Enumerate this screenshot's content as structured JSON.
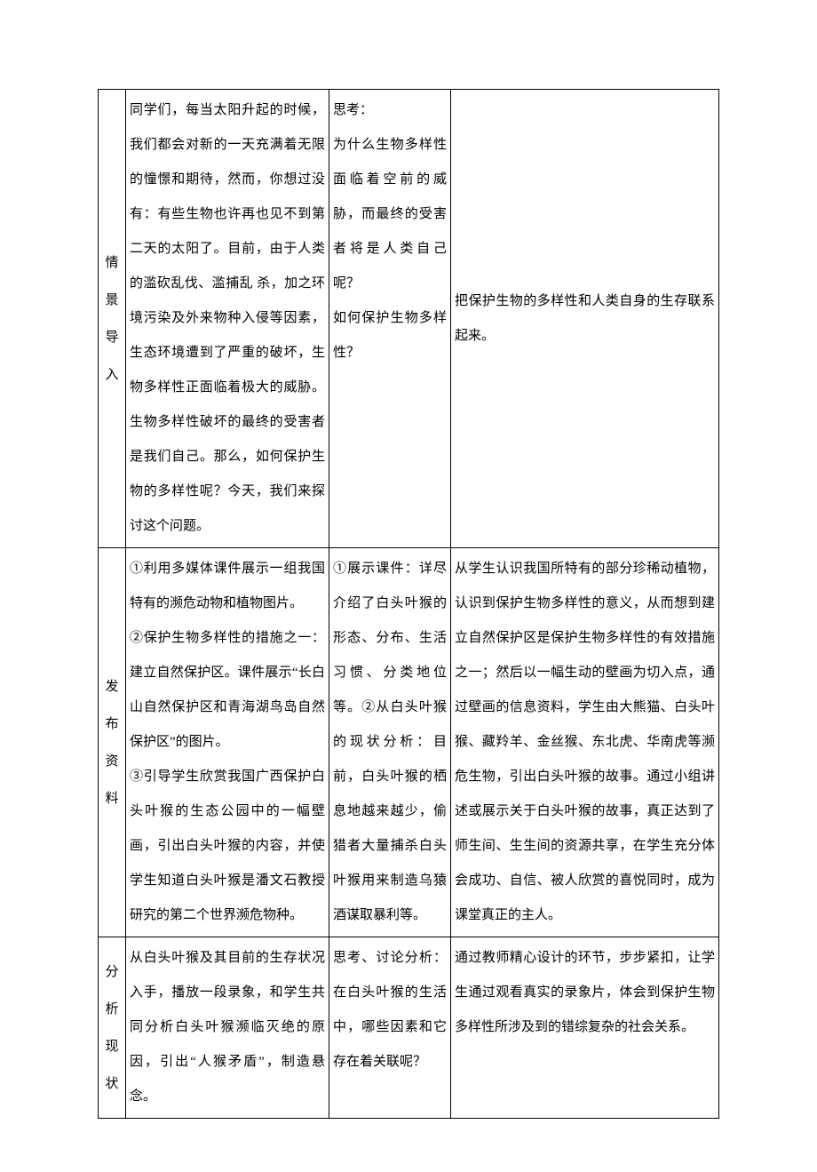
{
  "rows": [
    {
      "label": "情景导入",
      "teacher": "同学们，每当太阳升起的时候，我们都会对新的一天充满着无限的憧憬和期待，然而，你想过没有：有些生物也许再也见不到第二天的太阳了。目前，由于人类的滥砍乱伐、滥捕乱 杀，加之环境污染及外来物种入侵等因素，生态环境遭到了严重的破坏，生物多样性正面临着极大的威胁。生物多样性破坏的最终的受害者是我们自己。那么，如何保护生物的多样性呢？今天，我们来探讨这个问题。",
      "student": "思考：\n为什么生物多样性面临着空前的威胁，而最终的受害者将是人类自己呢？\n如何保护生物多样性？",
      "intent": "把保护生物的多样性和人类自身的生存联系起来。",
      "intent_valign": "middle"
    },
    {
      "label": "发布资料",
      "teacher": "①利用多媒体课件展示一组我国特有的濒危动物和植物图片。\n②保护生物多样性的措施之一：建立自然保护区。课件展示“长白山自然保护区和青海湖鸟岛自然保护区”的图片。\n③引导学生欣赏我国广西保护白头叶猴的生态公园中的一幅壁画，引出白头叶猴的内容，并使学生知道白头叶猴是潘文石教授研究的第二个世界濒危物种。",
      "student": "①展示课件：详尽介绍了白头叶猴的形态、分布、生活习惯、分类地位等。②从白头叶猴的现状分析：目前，白头叶猴的栖息地越来越少，偷猎者大量捕杀白头叶猴用来制造乌猿酒谋取暴利等。",
      "intent": "从学生认识我国所特有的部分珍稀动植物，认识到保护生物多样性的意义，从而想到建立自然保护区是保护生物多样性的有效措施之一；然后以一幅生动的壁画为切入点，通过壁画的信息资料，学生由大熊猫、白头叶猴、藏羚羊、金丝猴、东北虎、华南虎等濒危生物，引出白头叶猴的故事。通过小组讲述或展示关于白头叶猴的故事，真正达到了师生间、生生间的资源共享，在学生充分体会成功、自信、被人欣赏的喜悦同时，成为课堂真正的主人。",
      "intent_valign": "top"
    },
    {
      "label": "分析现状",
      "teacher": "从白头叶猴及其目前的生存状况入手，播放一段录象，和学生共同分析白头叶猴濒临灭绝的原因，引出“人猴矛盾”，制造悬念。",
      "student": "思考、讨论分析：在白头叶猴的生活中，哪些因素和它存在着关联呢？",
      "intent": "通过教师精心设计的环节，步步紧扣，让学生通过观看真实的录象片，体会到保护生物多样性所涉及到的错综复杂的社会关系。",
      "intent_valign": "top"
    }
  ]
}
